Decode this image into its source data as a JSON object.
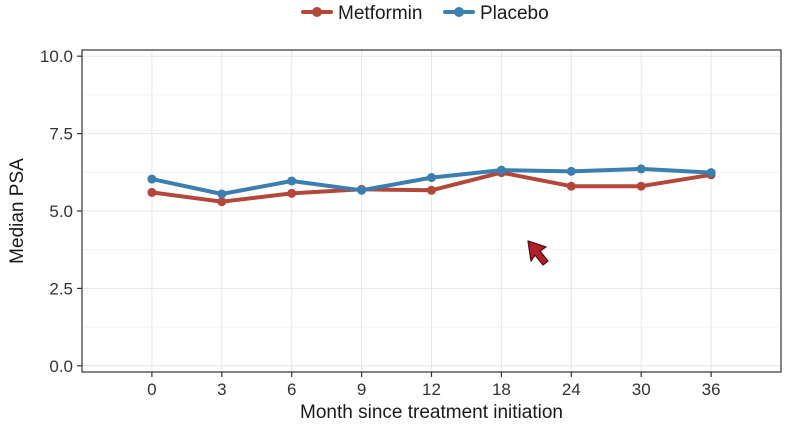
{
  "chart_data": {
    "type": "line",
    "categories": [
      "0",
      "3",
      "6",
      "9",
      "12",
      "18",
      "24",
      "30",
      "36"
    ],
    "xlabel": "Month since treatment initiation",
    "ylabel": "Median PSA",
    "ylim": [
      -0.2,
      10.2
    ],
    "yticks": [
      "0.0",
      "2.5",
      "5.0",
      "7.5",
      "10.0"
    ],
    "grid": true,
    "legend_position": "top",
    "series": [
      {
        "name": "Metformin",
        "color": "#b5473a",
        "values": [
          5.6,
          5.3,
          5.57,
          5.7,
          5.67,
          6.24,
          5.8,
          5.8,
          6.17
        ]
      },
      {
        "name": "Placebo",
        "color": "#3a7fb0",
        "values": [
          6.03,
          5.55,
          5.97,
          5.67,
          6.08,
          6.32,
          6.28,
          6.36,
          6.24
        ]
      }
    ]
  }
}
